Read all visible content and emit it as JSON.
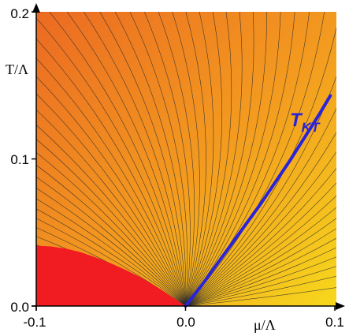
{
  "colors": {
    "background_top_left": "#ec6a22",
    "background_top_right": "#f39c1f",
    "background_bottom_right": "#f6d81c",
    "ordered_region": "#f11c22",
    "contour": "#2b2b2b",
    "tkt_curve": "#2a23d9",
    "axes": "#000000"
  },
  "chart_data": {
    "type": "line",
    "xlabel": "μ/Λ",
    "ylabel": "T/Λ",
    "xlim": [
      -0.1,
      0.1
    ],
    "ylim": [
      0.0,
      0.2
    ],
    "xticks": [
      "-0.1",
      "0.0",
      "0.1"
    ],
    "yticks": [
      "0.0",
      "0.1",
      "0.2"
    ],
    "series": [
      {
        "name": "T_KT",
        "label_main": "T",
        "label_sub": "KT",
        "x": [
          0.0,
          0.01,
          0.02,
          0.03,
          0.04,
          0.05,
          0.06,
          0.07,
          0.08,
          0.09,
          0.097
        ],
        "y": [
          0.0,
          0.013,
          0.027,
          0.041,
          0.055,
          0.069,
          0.084,
          0.099,
          0.115,
          0.131,
          0.143
        ]
      }
    ],
    "ordered_region": {
      "x": [
        -0.1,
        -0.09,
        -0.08,
        -0.07,
        -0.06,
        -0.05,
        -0.04,
        -0.03,
        -0.02,
        -0.01,
        0.0
      ],
      "y": [
        0.041,
        0.0405,
        0.039,
        0.0365,
        0.033,
        0.029,
        0.0245,
        0.0195,
        0.0135,
        0.007,
        0.0
      ]
    },
    "contours": "family of constant-density lines fanning out from the origin",
    "grid": false
  }
}
